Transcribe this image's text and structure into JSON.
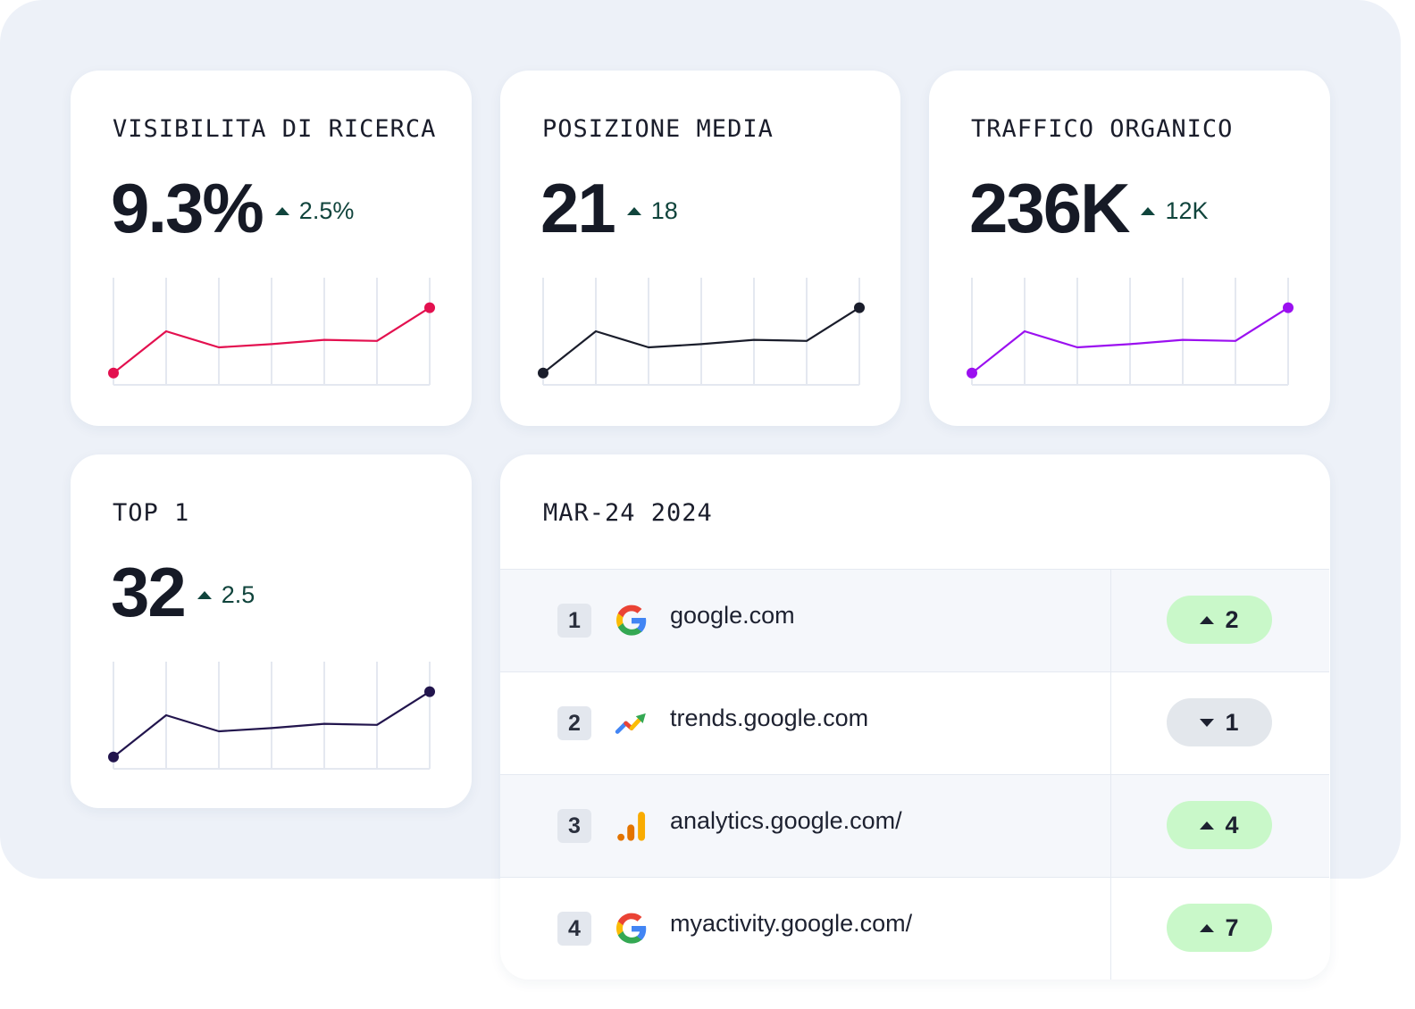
{
  "metrics": [
    {
      "label": "VISIBILITA DI RICERCA",
      "value": "9.3%",
      "delta": "2.5%",
      "delta_direction": "up",
      "color": "#e3104f",
      "spark": [
        11,
        50,
        35,
        38,
        42,
        41,
        72
      ]
    },
    {
      "label": "POSIZIONE MEDIA",
      "value": "21",
      "delta": "18",
      "delta_direction": "up",
      "color": "#1a1d2b",
      "spark": [
        11,
        50,
        35,
        38,
        42,
        41,
        72
      ]
    },
    {
      "label": "TRAFFICO ORGANICO",
      "value": "236K",
      "delta": "12K",
      "delta_direction": "up",
      "color": "#9b10f0",
      "spark": [
        11,
        50,
        35,
        38,
        42,
        41,
        72
      ]
    },
    {
      "label": "TOP 1",
      "value": "32",
      "delta": "2.5",
      "delta_direction": "up",
      "color": "#22154d",
      "spark": [
        11,
        50,
        35,
        38,
        42,
        41,
        72
      ]
    }
  ],
  "table": {
    "date_label": "MAR-24 2024",
    "rows": [
      {
        "rank": "1",
        "icon": "google-g-icon",
        "domain": "google.com",
        "change": "2",
        "direction": "up"
      },
      {
        "rank": "2",
        "icon": "trends-arrow-icon",
        "domain": "trends.google.com",
        "change": "1",
        "direction": "down"
      },
      {
        "rank": "3",
        "icon": "analytics-bars-icon",
        "domain": "analytics.google.com/",
        "change": "4",
        "direction": "up"
      },
      {
        "rank": "4",
        "icon": "google-g-icon",
        "domain": "myactivity.google.com/",
        "change": "7",
        "direction": "up"
      }
    ]
  },
  "colors": {
    "backdrop": "#edf1f8",
    "delta_text": "#10443c",
    "badge_up": "#c9f8c9",
    "badge_down": "#e3e7ec"
  }
}
